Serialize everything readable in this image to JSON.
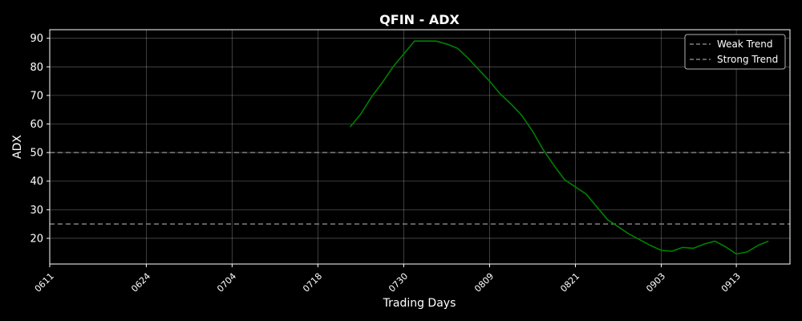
{
  "chart_data": {
    "type": "line",
    "title": "QFIN - ADX",
    "xlabel": "Trading Days",
    "ylabel": "ADX",
    "x_tick_labels": [
      "0611",
      "0624",
      "0704",
      "0718",
      "0730",
      "0809",
      "0821",
      "0903",
      "0913"
    ],
    "x_tick_days": [
      0,
      9,
      17,
      25,
      33,
      41,
      49,
      57,
      64
    ],
    "x_range": [
      0,
      69
    ],
    "y_ticks": [
      20,
      30,
      40,
      50,
      60,
      70,
      80,
      90
    ],
    "ylim": [
      11,
      93
    ],
    "grid": true,
    "legend_position": "top-right",
    "series": [
      {
        "color": "#008000",
        "x": [
          28,
          29,
          30,
          31,
          32,
          33,
          34,
          35,
          36,
          37,
          38,
          39,
          40,
          41,
          42,
          43,
          44,
          45,
          46,
          47,
          48,
          49,
          50,
          51,
          52,
          53,
          54,
          55,
          56,
          57,
          58,
          59,
          60,
          61,
          62,
          63,
          64,
          65,
          66,
          67
        ],
        "y": [
          59,
          63.5,
          69.5,
          74.5,
          80,
          84.5,
          89,
          89,
          89,
          88,
          86.5,
          83,
          79,
          75,
          70.5,
          67,
          63,
          57.5,
          51,
          45.5,
          40.5,
          38,
          35.5,
          31,
          26.5,
          24,
          21.5,
          19.5,
          17.5,
          15.8,
          15.5,
          16.8,
          16.5,
          18,
          19,
          17,
          14.5,
          15.2,
          17.5,
          19
        ]
      }
    ],
    "reference_lines": [
      {
        "name": "Weak Trend",
        "y": 50,
        "color": "#808080"
      },
      {
        "name": "Strong Trend",
        "y": 25,
        "color": "#808080"
      }
    ]
  }
}
